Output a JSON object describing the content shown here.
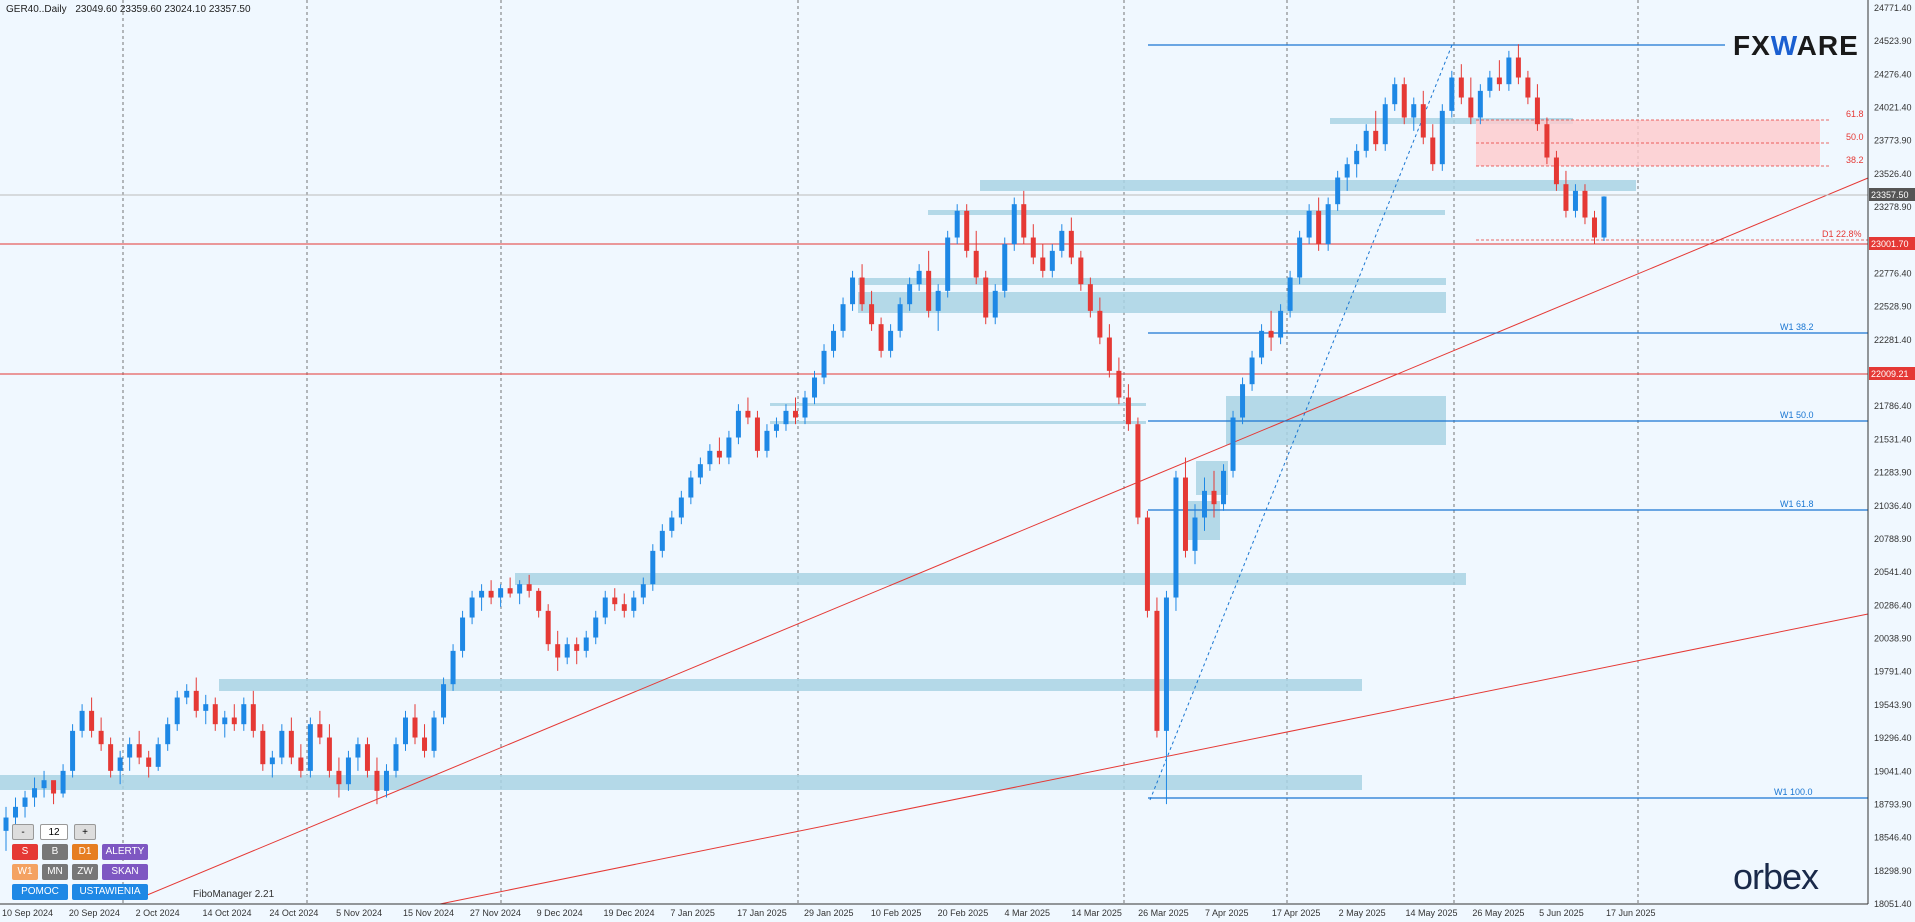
{
  "header": {
    "symbol": "GER40..Daily",
    "ohlc": "23049.60 23359.60 23024.10 23357.50"
  },
  "price_axis": {
    "ticks": [
      "24771.40",
      "24523.90",
      "24276.40",
      "24021.40",
      "23773.90",
      "23526.40",
      "23278.90",
      "23023.90",
      "22776.40",
      "22528.90",
      "22281.40",
      "22026.40",
      "21786.40",
      "21531.40",
      "21283.90",
      "21036.40",
      "20788.90",
      "20541.40",
      "20286.40",
      "20038.90",
      "19791.40",
      "19543.90",
      "19296.40",
      "19041.40",
      "18793.90",
      "18546.40",
      "18298.90",
      "18051.40"
    ],
    "current_price": "23357.50",
    "red_levels": [
      "23001.70",
      "22009.21"
    ]
  },
  "time_axis": {
    "ticks": [
      "10 Sep 2024",
      "20 Sep 2024",
      "2 Oct 2024",
      "14 Oct 2024",
      "24 Oct 2024",
      "5 Nov 2024",
      "15 Nov 2024",
      "27 Nov 2024",
      "9 Dec 2024",
      "19 Dec 2024",
      "7 Jan 2025",
      "17 Jan 2025",
      "29 Jan 2025",
      "10 Feb 2025",
      "20 Feb 2025",
      "4 Mar 2025",
      "14 Mar 2025",
      "26 Mar 2025",
      "7 Apr 2025",
      "17 Apr 2025",
      "2 May 2025",
      "14 May 2025",
      "26 May 2025",
      "5 Jun 2025",
      "17 Jun 2025"
    ]
  },
  "fib_labels": {
    "w1_38": "W1 38.2",
    "w1_50": "W1 50.0",
    "w1_61": "W1 61.8",
    "w1_100": "W1 100.0",
    "z618": "61.8",
    "z500": "50.0",
    "z382": "38.2",
    "d1": "D1 22.8%"
  },
  "panel": {
    "minus": "-",
    "num": "12",
    "plus": "+",
    "s": "S",
    "b": "B",
    "d1": "D1",
    "alerty": "ALERTY",
    "w1": "W1",
    "mn": "MN",
    "zw": "ZW",
    "skan": "SKAN",
    "pomoc": "POMOC",
    "ustawienia": "USTAWIENIA"
  },
  "fibo_manager": "FiboManager 2.21",
  "logos": {
    "fx_pre": "FX",
    "fx_w": "W",
    "fx_post": "ARE",
    "orbex": "orbex"
  },
  "colors": {
    "bull": "#1e88e5",
    "bear": "#e53935",
    "zone": "#a9d4e4",
    "redline": "#e53935",
    "blueline": "#1976d2",
    "bg": "#f0f8ff"
  },
  "chart_data": {
    "type": "candlestick",
    "y_range": [
      18051.4,
      24771.4
    ],
    "red_horizontal_levels": [
      23001.7,
      22009.21
    ],
    "blue_horizontal_levels": [
      24523.9,
      22300,
      21650,
      21010,
      18830
    ],
    "candles": [
      [
        18600,
        18780,
        18450,
        18700
      ],
      [
        18700,
        18850,
        18600,
        18780
      ],
      [
        18780,
        18900,
        18700,
        18850
      ],
      [
        18850,
        19000,
        18780,
        18920
      ],
      [
        18920,
        19050,
        18850,
        18980
      ],
      [
        18980,
        18950,
        18800,
        18880
      ],
      [
        18880,
        19100,
        18850,
        19050
      ],
      [
        19050,
        19400,
        19000,
        19350
      ],
      [
        19350,
        19550,
        19300,
        19500
      ],
      [
        19500,
        19600,
        19300,
        19350
      ],
      [
        19350,
        19450,
        19200,
        19250
      ],
      [
        19250,
        19300,
        19000,
        19050
      ],
      [
        19050,
        19200,
        18950,
        19150
      ],
      [
        19150,
        19300,
        19050,
        19250
      ],
      [
        19250,
        19350,
        19100,
        19150
      ],
      [
        19150,
        19200,
        19000,
        19080
      ],
      [
        19080,
        19300,
        19050,
        19250
      ],
      [
        19250,
        19450,
        19200,
        19400
      ],
      [
        19400,
        19650,
        19350,
        19600
      ],
      [
        19600,
        19700,
        19550,
        19650
      ],
      [
        19650,
        19750,
        19450,
        19500
      ],
      [
        19500,
        19620,
        19400,
        19550
      ],
      [
        19550,
        19600,
        19350,
        19400
      ],
      [
        19400,
        19500,
        19300,
        19450
      ],
      [
        19450,
        19550,
        19350,
        19400
      ],
      [
        19400,
        19600,
        19350,
        19550
      ],
      [
        19550,
        19650,
        19300,
        19350
      ],
      [
        19350,
        19400,
        19050,
        19100
      ],
      [
        19100,
        19200,
        19000,
        19150
      ],
      [
        19150,
        19400,
        19100,
        19350
      ],
      [
        19350,
        19450,
        19100,
        19150
      ],
      [
        19150,
        19250,
        19000,
        19050
      ],
      [
        19050,
        19450,
        19000,
        19400
      ],
      [
        19400,
        19500,
        19250,
        19300
      ],
      [
        19300,
        19400,
        19000,
        19050
      ],
      [
        19050,
        19150,
        18850,
        18950
      ],
      [
        18950,
        19200,
        18900,
        19150
      ],
      [
        19150,
        19300,
        19050,
        19250
      ],
      [
        19250,
        19300,
        19000,
        19050
      ],
      [
        19050,
        19150,
        18800,
        18900
      ],
      [
        18900,
        19100,
        18850,
        19050
      ],
      [
        19050,
        19300,
        19000,
        19250
      ],
      [
        19250,
        19500,
        19200,
        19450
      ],
      [
        19450,
        19550,
        19250,
        19300
      ],
      [
        19300,
        19400,
        19150,
        19200
      ],
      [
        19200,
        19500,
        19150,
        19450
      ],
      [
        19450,
        19750,
        19400,
        19700
      ],
      [
        19700,
        20000,
        19650,
        19950
      ],
      [
        19950,
        20250,
        19900,
        20200
      ],
      [
        20200,
        20400,
        20150,
        20350
      ],
      [
        20350,
        20450,
        20250,
        20400
      ],
      [
        20400,
        20480,
        20300,
        20350
      ],
      [
        20350,
        20450,
        20280,
        20420
      ],
      [
        20420,
        20500,
        20350,
        20380
      ],
      [
        20380,
        20480,
        20300,
        20450
      ],
      [
        20450,
        20520,
        20350,
        20400
      ],
      [
        20400,
        20420,
        20200,
        20250
      ],
      [
        20250,
        20300,
        19950,
        20000
      ],
      [
        20000,
        20100,
        19800,
        19900
      ],
      [
        19900,
        20050,
        19850,
        20000
      ],
      [
        20000,
        20050,
        19850,
        19950
      ],
      [
        19950,
        20100,
        19900,
        20050
      ],
      [
        20050,
        20250,
        20000,
        20200
      ],
      [
        20200,
        20400,
        20150,
        20350
      ],
      [
        20350,
        20420,
        20250,
        20300
      ],
      [
        20300,
        20380,
        20200,
        20250
      ],
      [
        20250,
        20400,
        20200,
        20350
      ],
      [
        20350,
        20500,
        20300,
        20450
      ],
      [
        20450,
        20750,
        20400,
        20700
      ],
      [
        20700,
        20900,
        20650,
        20850
      ],
      [
        20850,
        21000,
        20800,
        20950
      ],
      [
        20950,
        21150,
        20900,
        21100
      ],
      [
        21100,
        21300,
        21050,
        21250
      ],
      [
        21250,
        21400,
        21200,
        21350
      ],
      [
        21350,
        21500,
        21300,
        21450
      ],
      [
        21450,
        21550,
        21350,
        21400
      ],
      [
        21400,
        21600,
        21350,
        21550
      ],
      [
        21550,
        21800,
        21500,
        21750
      ],
      [
        21750,
        21850,
        21650,
        21700
      ],
      [
        21700,
        21750,
        21400,
        21450
      ],
      [
        21450,
        21650,
        21400,
        21600
      ],
      [
        21600,
        21700,
        21550,
        21650
      ],
      [
        21650,
        21800,
        21600,
        21750
      ],
      [
        21750,
        21850,
        21650,
        21700
      ],
      [
        21700,
        21900,
        21650,
        21850
      ],
      [
        21850,
        22050,
        21800,
        22000
      ],
      [
        22000,
        22250,
        21950,
        22200
      ],
      [
        22200,
        22400,
        22150,
        22350
      ],
      [
        22350,
        22600,
        22300,
        22550
      ],
      [
        22550,
        22800,
        22500,
        22750
      ],
      [
        22750,
        22850,
        22500,
        22550
      ],
      [
        22550,
        22650,
        22350,
        22400
      ],
      [
        22400,
        22450,
        22150,
        22200
      ],
      [
        22200,
        22400,
        22150,
        22350
      ],
      [
        22350,
        22600,
        22300,
        22550
      ],
      [
        22550,
        22750,
        22500,
        22700
      ],
      [
        22700,
        22850,
        22650,
        22800
      ],
      [
        22800,
        22950,
        22450,
        22500
      ],
      [
        22500,
        22700,
        22350,
        22650
      ],
      [
        22650,
        23100,
        22600,
        23050
      ],
      [
        23050,
        23300,
        23000,
        23250
      ],
      [
        23250,
        23300,
        22900,
        22950
      ],
      [
        22950,
        23100,
        22700,
        22750
      ],
      [
        22750,
        22800,
        22400,
        22450
      ],
      [
        22450,
        22700,
        22400,
        22650
      ],
      [
        22650,
        23050,
        22600,
        23000
      ],
      [
        23000,
        23350,
        22950,
        23300
      ],
      [
        23300,
        23400,
        23000,
        23050
      ],
      [
        23050,
        23150,
        22850,
        22900
      ],
      [
        22900,
        23000,
        22750,
        22800
      ],
      [
        22800,
        23000,
        22750,
        22950
      ],
      [
        22950,
        23150,
        22900,
        23100
      ],
      [
        23100,
        23200,
        22850,
        22900
      ],
      [
        22900,
        22950,
        22650,
        22700
      ],
      [
        22700,
        22750,
        22450,
        22500
      ],
      [
        22500,
        22600,
        22250,
        22300
      ],
      [
        22300,
        22400,
        22000,
        22050
      ],
      [
        22050,
        22150,
        21800,
        21850
      ],
      [
        21850,
        21950,
        21600,
        21650
      ],
      [
        21650,
        21700,
        20900,
        20950
      ],
      [
        20950,
        21000,
        20200,
        20250
      ],
      [
        20250,
        20350,
        19300,
        19350
      ],
      [
        19350,
        20400,
        18800,
        20350
      ],
      [
        20350,
        21300,
        20250,
        21250
      ],
      [
        21250,
        21400,
        20650,
        20700
      ],
      [
        20700,
        21050,
        20600,
        20950
      ],
      [
        20950,
        21250,
        20850,
        21150
      ],
      [
        21150,
        21300,
        20950,
        21050
      ],
      [
        21050,
        21350,
        21000,
        21300
      ],
      [
        21300,
        21750,
        21250,
        21700
      ],
      [
        21700,
        22000,
        21650,
        21950
      ],
      [
        21950,
        22200,
        21900,
        22150
      ],
      [
        22150,
        22400,
        22100,
        22350
      ],
      [
        22350,
        22500,
        22200,
        22300
      ],
      [
        22300,
        22550,
        22250,
        22500
      ],
      [
        22500,
        22800,
        22450,
        22750
      ],
      [
        22750,
        23100,
        22700,
        23050
      ],
      [
        23050,
        23300,
        23000,
        23250
      ],
      [
        23250,
        23350,
        22950,
        23000
      ],
      [
        23000,
        23350,
        22950,
        23300
      ],
      [
        23300,
        23550,
        23250,
        23500
      ],
      [
        23500,
        23650,
        23400,
        23600
      ],
      [
        23600,
        23750,
        23500,
        23700
      ],
      [
        23700,
        23900,
        23650,
        23850
      ],
      [
        23850,
        24000,
        23700,
        23750
      ],
      [
        23750,
        24100,
        23700,
        24050
      ],
      [
        24050,
        24250,
        24000,
        24200
      ],
      [
        24200,
        24250,
        23900,
        23950
      ],
      [
        23950,
        24100,
        23850,
        24050
      ],
      [
        24050,
        24150,
        23750,
        23800
      ],
      [
        23800,
        23900,
        23550,
        23600
      ],
      [
        23600,
        24050,
        23550,
        24000
      ],
      [
        24000,
        24300,
        23950,
        24250
      ],
      [
        24250,
        24350,
        24050,
        24100
      ],
      [
        24100,
        24250,
        23900,
        23950
      ],
      [
        23950,
        24200,
        23900,
        24150
      ],
      [
        24150,
        24300,
        24100,
        24250
      ],
      [
        24250,
        24380,
        24150,
        24200
      ],
      [
        24200,
        24450,
        24150,
        24400
      ],
      [
        24400,
        24500,
        24200,
        24250
      ],
      [
        24250,
        24300,
        24050,
        24100
      ],
      [
        24100,
        24200,
        23850,
        23900
      ],
      [
        23900,
        23950,
        23600,
        23650
      ],
      [
        23650,
        23700,
        23400,
        23450
      ],
      [
        23450,
        23550,
        23200,
        23250
      ],
      [
        23250,
        23450,
        23200,
        23400
      ],
      [
        23400,
        23450,
        23150,
        23200
      ],
      [
        23200,
        23250,
        23000,
        23050
      ],
      [
        23050,
        23359.6,
        23024.1,
        23357.5
      ]
    ]
  }
}
